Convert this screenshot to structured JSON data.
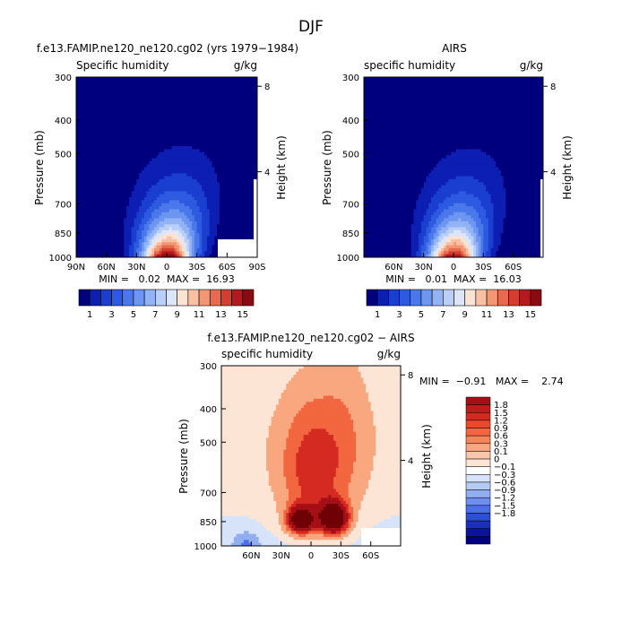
{
  "figure_title": "DJF",
  "colors": {
    "seq_levels": [
      "#00007f",
      "#0d1fb3",
      "#1a3fd0",
      "#2d5ae0",
      "#4a78ea",
      "#6c96f0",
      "#92b3f5",
      "#b9cff8",
      "#dde6f9",
      "#fbe3d3",
      "#f9c0a2",
      "#f39673",
      "#e8694d",
      "#d33e2e",
      "#b3191f",
      "#8a0a12",
      "#5f0008"
    ],
    "seq_cbar": [
      "#00007f",
      "#0d1fb3",
      "#1a3fd0",
      "#2d5ae0",
      "#4a78ea",
      "#6c96f0",
      "#92b3f5",
      "#b9cff8",
      "#dde6f9",
      "#fbe3d3",
      "#f9c0a2",
      "#f39673",
      "#e8694d",
      "#d33e2e",
      "#b3191f",
      "#8a0a12"
    ],
    "diff_cbar": [
      "#a50f15",
      "#bd1c1c",
      "#d52a21",
      "#e94a2e",
      "#f2673f",
      "#f7855a",
      "#f9a77f",
      "#fbc7aa",
      "#fde5d5",
      "#ffffff",
      "#d6e3f8",
      "#b5cbf3",
      "#91aef0",
      "#6c8ff0",
      "#4b6fea",
      "#2c4fd8",
      "#1a2fbc",
      "#0b139a",
      "#00007f"
    ],
    "diff_levels": [
      "#00007f",
      "#1a2fbc",
      "#4b6fea",
      "#91aef0",
      "#d6e3f8",
      "#fde5d5",
      "#f9a77f",
      "#f2673f",
      "#d52a21",
      "#a50f15",
      "#6e0006"
    ]
  },
  "chart_data": [
    {
      "panel": "model",
      "type": "contour",
      "title": "f.e13.FAMIP.ne120_ne120.cg02 (yrs 1979−1984)",
      "variable_label": "Specific humidity",
      "units_label": "g/kg",
      "ylabel": "Pressure (mb)",
      "right_label": "Height (km)",
      "x_tick_labels": [
        "90N",
        "60N",
        "30N",
        "0",
        "30S",
        "60S",
        "90S"
      ],
      "xlim": [
        90,
        -90
      ],
      "y_ticks": [
        300,
        400,
        500,
        700,
        850,
        1000
      ],
      "height_ticks": [
        8,
        4
      ],
      "stats_text": "MIN =   0.02  MAX =  16.93",
      "min": 0.02,
      "max": 16.93,
      "peak_lat": 0,
      "peak_value": 16.5,
      "cbar_labels": [
        "1",
        "3",
        "5",
        "7",
        "9",
        "11",
        "13",
        "15"
      ]
    },
    {
      "panel": "obs",
      "type": "contour",
      "title": "AIRS",
      "variable_label": "specific humidity",
      "units_label": "g/kg",
      "ylabel": "Pressure (mb)",
      "right_label": "Height (km)",
      "x_tick_labels": [
        "60N",
        "30N",
        "0",
        "30S",
        "60S"
      ],
      "xlim": [
        90,
        -90
      ],
      "y_ticks": [
        300,
        400,
        500,
        700,
        850,
        1000
      ],
      "height_ticks": [
        8,
        4
      ],
      "stats_text": "MIN =   0.01  MAX =  16.03",
      "min": 0.01,
      "max": 16.03,
      "peak_lat": 0,
      "peak_value": 15.5,
      "cbar_labels": [
        "1",
        "3",
        "5",
        "7",
        "9",
        "11",
        "13",
        "15"
      ]
    },
    {
      "panel": "difference",
      "type": "contour",
      "title": "f.e13.FAMIP.ne120_ne120.cg02 − AIRS",
      "variable_label": "specific humidity",
      "units_label": "g/kg",
      "ylabel": "Pressure (mb)",
      "right_label": "Height (km)",
      "x_tick_labels": [
        "60N",
        "30N",
        "0",
        "30S",
        "60S"
      ],
      "xlim": [
        90,
        -90
      ],
      "y_ticks": [
        300,
        400,
        500,
        700,
        850,
        1000
      ],
      "height_ticks": [
        8,
        4
      ],
      "stats_text": "MIN =  −0.91   MAX =    2.74",
      "min": -0.91,
      "max": 2.74,
      "cbar_labels": [
        "1.8",
        "1.5",
        "1.2",
        "0.9",
        "0.6",
        "0.3",
        "0.1",
        "0",
        "−0.1",
        "−0.3",
        "−0.6",
        "−0.9",
        "−1.2",
        "−1.5",
        "−1.8"
      ],
      "max_anomaly_lats": [
        10,
        -25
      ],
      "max_anomaly_pressure": 840
    }
  ]
}
